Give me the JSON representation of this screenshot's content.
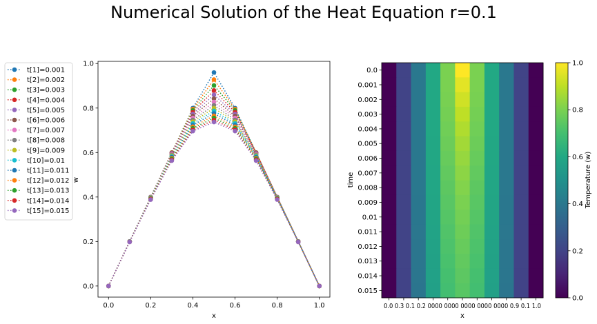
{
  "title": "Numerical Solution of the  Heat Equation r=0.1",
  "chart_data": [
    {
      "type": "line",
      "xlabel": "x",
      "ylabel": "w",
      "xlim": [
        -0.05,
        1.05
      ],
      "ylim": [
        -0.05,
        1.01
      ],
      "xticks": [
        "0.0",
        "0.2",
        "0.4",
        "0.6",
        "0.8",
        "1.0"
      ],
      "yticks": [
        "0.0",
        "0.2",
        "0.4",
        "0.6",
        "0.8",
        "1.0"
      ],
      "x": [
        0.0,
        0.1,
        0.2,
        0.3,
        0.4,
        0.5,
        0.6,
        0.7,
        0.8,
        0.9,
        1.0
      ],
      "legend_position": "left-outside",
      "grid": false,
      "series": [
        {
          "name": "t[1]=0.001",
          "color": "#1f77b4",
          "values": [
            0,
            0.2,
            0.4,
            0.6,
            0.8,
            0.96,
            0.8,
            0.6,
            0.4,
            0.2,
            0
          ]
        },
        {
          "name": "t[2]=0.002",
          "color": "#ff7f0e",
          "values": [
            0,
            0.2,
            0.4,
            0.6,
            0.796,
            0.928,
            0.796,
            0.6,
            0.4,
            0.2,
            0
          ]
        },
        {
          "name": "t[3]=0.003",
          "color": "#2ca02c",
          "values": [
            0,
            0.2,
            0.4,
            0.5996,
            0.7896,
            0.9016,
            0.7896,
            0.5996,
            0.4,
            0.2,
            0
          ]
        },
        {
          "name": "t[4]=0.004",
          "color": "#d62728",
          "values": [
            0,
            0.2,
            0.4,
            0.5986,
            0.7818,
            0.8792,
            0.7818,
            0.5986,
            0.4,
            0.2,
            0
          ]
        },
        {
          "name": "t[5]=0.005",
          "color": "#9467bd",
          "values": [
            0,
            0.2,
            0.3999,
            0.5971,
            0.7732,
            0.8597,
            0.7732,
            0.5971,
            0.3999,
            0.2,
            0
          ]
        },
        {
          "name": "t[6]=0.006",
          "color": "#8c564b",
          "values": [
            0,
            0.2,
            0.3997,
            0.5949,
            0.7643,
            0.8424,
            0.7643,
            0.5949,
            0.3997,
            0.2,
            0
          ]
        },
        {
          "name": "t[7]=0.007",
          "color": "#e377c2",
          "values": [
            0,
            0.2,
            0.3992,
            0.5923,
            0.7555,
            0.8268,
            0.7555,
            0.5923,
            0.3992,
            0.2,
            0
          ]
        },
        {
          "name": "t[8]=0.008",
          "color": "#7f7f7f",
          "values": [
            0,
            0.1999,
            0.3985,
            0.5893,
            0.7469,
            0.8125,
            0.7469,
            0.5893,
            0.3985,
            0.1999,
            0
          ]
        },
        {
          "name": "t[9]=0.009",
          "color": "#bcbd22",
          "values": [
            0,
            0.1998,
            0.3976,
            0.586,
            0.7387,
            0.7994,
            0.7387,
            0.586,
            0.3976,
            0.1998,
            0
          ]
        },
        {
          "name": "t[10]=0.01",
          "color": "#17becf",
          "values": [
            0,
            0.1996,
            0.3965,
            0.5825,
            0.7308,
            0.7873,
            0.7308,
            0.5825,
            0.3965,
            0.1996,
            0
          ]
        },
        {
          "name": "t[11]=0.011",
          "color": "#1f77b4",
          "values": [
            0,
            0.1994,
            0.3952,
            0.5789,
            0.7233,
            0.776,
            0.7233,
            0.5789,
            0.3952,
            0.1994,
            0
          ]
        },
        {
          "name": "t[12]=0.012",
          "color": "#ff7f0e",
          "values": [
            0,
            0.1991,
            0.3937,
            0.5751,
            0.7161,
            0.7654,
            0.7161,
            0.5751,
            0.3937,
            0.1991,
            0
          ]
        },
        {
          "name": "t[13]=0.013",
          "color": "#2ca02c",
          "values": [
            0,
            0.1988,
            0.392,
            0.5713,
            0.7092,
            0.7555,
            0.7092,
            0.5713,
            0.392,
            0.1988,
            0
          ]
        },
        {
          "name": "t[14]=0.014",
          "color": "#d62728",
          "values": [
            0,
            0.1984,
            0.3902,
            0.5675,
            0.7026,
            0.7461,
            0.7026,
            0.5675,
            0.3902,
            0.1984,
            0
          ]
        },
        {
          "name": "t[15]=0.015",
          "color": "#9467bd",
          "values": [
            0,
            0.198,
            0.3884,
            0.5636,
            0.6963,
            0.7372,
            0.6963,
            0.5636,
            0.3884,
            0.198,
            0
          ]
        }
      ]
    },
    {
      "type": "heatmap",
      "xlabel": "x",
      "ylabel": "time",
      "colorbar_label": "Temperature (w)",
      "colormap": "viridis",
      "vmin": 0.0,
      "vmax": 1.0,
      "colorbar_ticks": [
        "0.0",
        "0.2",
        "0.4",
        "0.6",
        "0.8",
        "1.0"
      ],
      "x_tick_labels_overlapping": "0.0 0.3 0.1 0.2 0000 0000 0000 0000 0000 0.9 0.1 1.0",
      "x_values": [
        0.0,
        0.1,
        0.2,
        0.3,
        0.4,
        0.5,
        0.6,
        0.7,
        0.8,
        0.9,
        1.0
      ],
      "y_tick_labels": [
        "0.0",
        "0.001",
        "0.002",
        "0.003",
        "0.004",
        "0.005",
        "0.006",
        "0.007",
        "0.008",
        "0.009",
        "0.01",
        "0.011",
        "0.012",
        "0.013",
        "0.014",
        "0.015"
      ],
      "rows": [
        [
          0,
          0.2,
          0.4,
          0.6,
          0.8,
          1.0,
          0.8,
          0.6,
          0.4,
          0.2,
          0
        ],
        [
          0,
          0.2,
          0.4,
          0.6,
          0.8,
          0.96,
          0.8,
          0.6,
          0.4,
          0.2,
          0
        ],
        [
          0,
          0.2,
          0.4,
          0.6,
          0.796,
          0.928,
          0.796,
          0.6,
          0.4,
          0.2,
          0
        ],
        [
          0,
          0.2,
          0.4,
          0.5996,
          0.7896,
          0.9016,
          0.7896,
          0.5996,
          0.4,
          0.2,
          0
        ],
        [
          0,
          0.2,
          0.4,
          0.5986,
          0.7818,
          0.8792,
          0.7818,
          0.5986,
          0.4,
          0.2,
          0
        ],
        [
          0,
          0.2,
          0.3999,
          0.5971,
          0.7732,
          0.8597,
          0.7732,
          0.5971,
          0.3999,
          0.2,
          0
        ],
        [
          0,
          0.2,
          0.3997,
          0.5949,
          0.7643,
          0.8424,
          0.7643,
          0.5949,
          0.3997,
          0.2,
          0
        ],
        [
          0,
          0.2,
          0.3992,
          0.5923,
          0.7555,
          0.8268,
          0.7555,
          0.5923,
          0.3992,
          0.2,
          0
        ],
        [
          0,
          0.1999,
          0.3985,
          0.5893,
          0.7469,
          0.8125,
          0.7469,
          0.5893,
          0.3985,
          0.1999,
          0
        ],
        [
          0,
          0.1998,
          0.3976,
          0.586,
          0.7387,
          0.7994,
          0.7387,
          0.586,
          0.3976,
          0.1998,
          0
        ],
        [
          0,
          0.1996,
          0.3965,
          0.5825,
          0.7308,
          0.7873,
          0.7308,
          0.5825,
          0.3965,
          0.1996,
          0
        ],
        [
          0,
          0.1994,
          0.3952,
          0.5789,
          0.7233,
          0.776,
          0.7233,
          0.5789,
          0.3952,
          0.1994,
          0
        ],
        [
          0,
          0.1991,
          0.3937,
          0.5751,
          0.7161,
          0.7654,
          0.7161,
          0.5751,
          0.3937,
          0.1991,
          0
        ],
        [
          0,
          0.1988,
          0.392,
          0.5713,
          0.7092,
          0.7555,
          0.7092,
          0.5713,
          0.392,
          0.1988,
          0
        ],
        [
          0,
          0.1984,
          0.3902,
          0.5675,
          0.7026,
          0.7461,
          0.7026,
          0.5675,
          0.3902,
          0.1984,
          0
        ],
        [
          0,
          0.198,
          0.3884,
          0.5636,
          0.6963,
          0.7372,
          0.6963,
          0.5636,
          0.3884,
          0.198,
          0
        ]
      ]
    }
  ]
}
